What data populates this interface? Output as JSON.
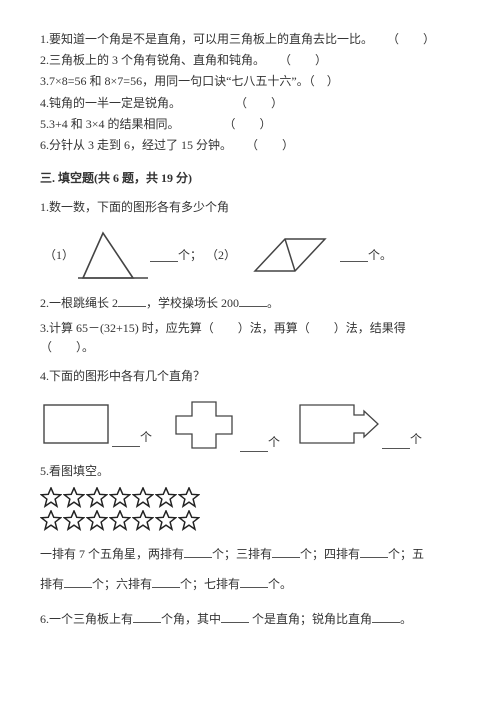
{
  "tf": {
    "q1": "1.要知道一个角是不是直角，可以用三角板上的直角去比一比。",
    "q2": "2.三角板上的 3 个角有锐角、直角和钝角。",
    "q3": "3.7×8=56 和 8×7=56，用同一句口诀“七八五十六”。（　）",
    "q4": "4.钝角的一半一定是锐角。",
    "q5": "5.3+4 和 3×4 的结果相同。",
    "q6": "6.分针从 3 走到 6，经过了 15 分钟。",
    "paren": "（　　）"
  },
  "section3": "三. 填空题(共 6 题，共 19 分)",
  "fib": {
    "q1": "1.数一数，下面的图形各有多少个角",
    "q1_p1": "（1）",
    "q1_p2": "（2）",
    "unit_ge": "个；",
    "unit_ge2": "个。",
    "q2a": "2.一根跳绳长 2",
    "q2b": "，学校操场长 200",
    "q2c": "。",
    "q3a": "3.计算 65－(32+15) 时，应先算（",
    "q3b": "）法，再算（",
    "q3c": "）法，结果得",
    "q3d": "（",
    "q3e": "）。",
    "q4": "4.下面的图形中各有几个直角？",
    "q4_unit": "个",
    "q5": "5.看图填空。",
    "q5_text1": "一排有 7 个五角星，两排有",
    "q5_text2": "个；三排有",
    "q5_text3": "个；四排有",
    "q5_text4": "个；五",
    "q5_text5": "排有",
    "q5_text6": "个；六排有",
    "q5_text7": "个；七排有",
    "q5_text8": "个。",
    "q6a": "6.一个三角板上有",
    "q6b": "个角，其中",
    "q6c": " 个是直角；锐角比直角",
    "q6d": "。"
  },
  "colors": {
    "line": "#444"
  },
  "stars": {
    "count_per_row": 7,
    "rows": 2
  }
}
